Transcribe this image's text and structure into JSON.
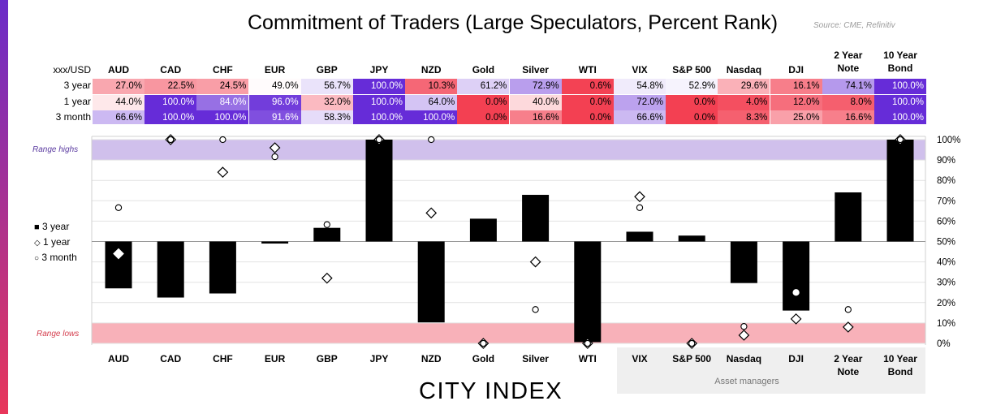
{
  "title": "Commitment of Traders (Large Speculators, Percent Rank)",
  "source": "Source: CME, Refinitiv",
  "logo": "CITY INDEX",
  "table": {
    "corner": "xxx/USD",
    "columns": [
      "AUD",
      "CAD",
      "CHF",
      "EUR",
      "GBP",
      "JPY",
      "NZD",
      "Gold",
      "Silver",
      "WTI",
      "VIX",
      "S&P 500",
      "Nasdaq",
      "DJI",
      "2 Year Note",
      "10 Year Bond"
    ],
    "rows": [
      {
        "label": "3 year",
        "values": [
          "27.0%",
          "22.5%",
          "24.5%",
          "49.0%",
          "56.7%",
          "100.0%",
          "10.3%",
          "61.2%",
          "72.9%",
          "0.6%",
          "54.8%",
          "52.9%",
          "29.6%",
          "16.1%",
          "74.1%",
          "100.0%"
        ]
      },
      {
        "label": "1 year",
        "values": [
          "44.0%",
          "100.0%",
          "84.0%",
          "96.0%",
          "32.0%",
          "100.0%",
          "64.0%",
          "0.0%",
          "40.0%",
          "0.0%",
          "72.0%",
          "0.0%",
          "4.0%",
          "12.0%",
          "8.0%",
          "100.0%"
        ]
      },
      {
        "label": "3 month",
        "values": [
          "66.6%",
          "100.0%",
          "100.0%",
          "91.6%",
          "58.3%",
          "100.0%",
          "100.0%",
          "0.0%",
          "16.6%",
          "0.0%",
          "66.6%",
          "0.0%",
          "8.3%",
          "25.0%",
          "16.6%",
          "100.0%"
        ]
      }
    ]
  },
  "chart_data": {
    "type": "bar",
    "title": "Commitment of Traders (Large Speculators, Percent Rank)",
    "baseline": 50,
    "ylim": [
      0,
      100
    ],
    "yticks": [
      "0%",
      "10%",
      "20%",
      "30%",
      "40%",
      "50%",
      "60%",
      "70%",
      "80%",
      "90%",
      "100%"
    ],
    "categories": [
      "AUD",
      "CAD",
      "CHF",
      "EUR",
      "GBP",
      "JPY",
      "NZD",
      "Gold",
      "Silver",
      "WTI",
      "VIX",
      "S&P 500",
      "Nasdaq",
      "DJI",
      "2 Year Note",
      "10 Year Bond"
    ],
    "series": [
      {
        "name": "3 year",
        "marker": "bar",
        "values": [
          27.0,
          22.5,
          24.5,
          49.0,
          56.7,
          100.0,
          10.3,
          61.2,
          72.9,
          0.6,
          54.8,
          52.9,
          29.6,
          16.1,
          74.1,
          100.0
        ]
      },
      {
        "name": "1 year",
        "marker": "diamond",
        "values": [
          44.0,
          100.0,
          84.0,
          96.0,
          32.0,
          100.0,
          64.0,
          0.0,
          40.0,
          0.0,
          72.0,
          0.0,
          4.0,
          12.0,
          8.0,
          100.0
        ]
      },
      {
        "name": "3 month",
        "marker": "circle",
        "values": [
          66.6,
          100.0,
          100.0,
          91.6,
          58.3,
          100.0,
          100.0,
          0.0,
          16.6,
          0.0,
          66.6,
          0.0,
          8.3,
          25.0,
          16.6,
          100.0
        ]
      }
    ],
    "range_highs": {
      "label": "Range highs",
      "from": 90,
      "to": 100,
      "color": "#d0c0ec"
    },
    "range_lows": {
      "label": "Range lows",
      "from": 0,
      "to": 10,
      "color": "#f8b1b9"
    },
    "legend": [
      "3 year",
      "1 year",
      "3 month"
    ],
    "group_label": "Asset managers",
    "group_columns": [
      "VIX",
      "S&P 500",
      "Nasdaq",
      "DJI",
      "2 Year Note",
      "10 Year Bond"
    ]
  },
  "axis_labels": [
    [
      "AUD"
    ],
    [
      "CAD"
    ],
    [
      "CHF"
    ],
    [
      "EUR"
    ],
    [
      "GBP"
    ],
    [
      "JPY"
    ],
    [
      "NZD"
    ],
    [
      "Gold"
    ],
    [
      "Silver"
    ],
    [
      "WTI"
    ],
    [
      "VIX"
    ],
    [
      "S&P 500"
    ],
    [
      "Nasdaq"
    ],
    [
      "DJI"
    ],
    [
      "2 Year",
      "Note"
    ],
    [
      "10 Year",
      "Bond"
    ]
  ],
  "header_labels": [
    [
      "AUD"
    ],
    [
      "CAD"
    ],
    [
      "CHF"
    ],
    [
      "EUR"
    ],
    [
      "GBP"
    ],
    [
      "JPY"
    ],
    [
      "NZD"
    ],
    [
      "Gold"
    ],
    [
      "Silver"
    ],
    [
      "WTI"
    ],
    [
      "VIX"
    ],
    [
      "S&P 500"
    ],
    [
      "Nasdaq"
    ],
    [
      "DJI"
    ],
    [
      "2 Year",
      "Note"
    ],
    [
      "10 Year",
      "Bond"
    ]
  ]
}
